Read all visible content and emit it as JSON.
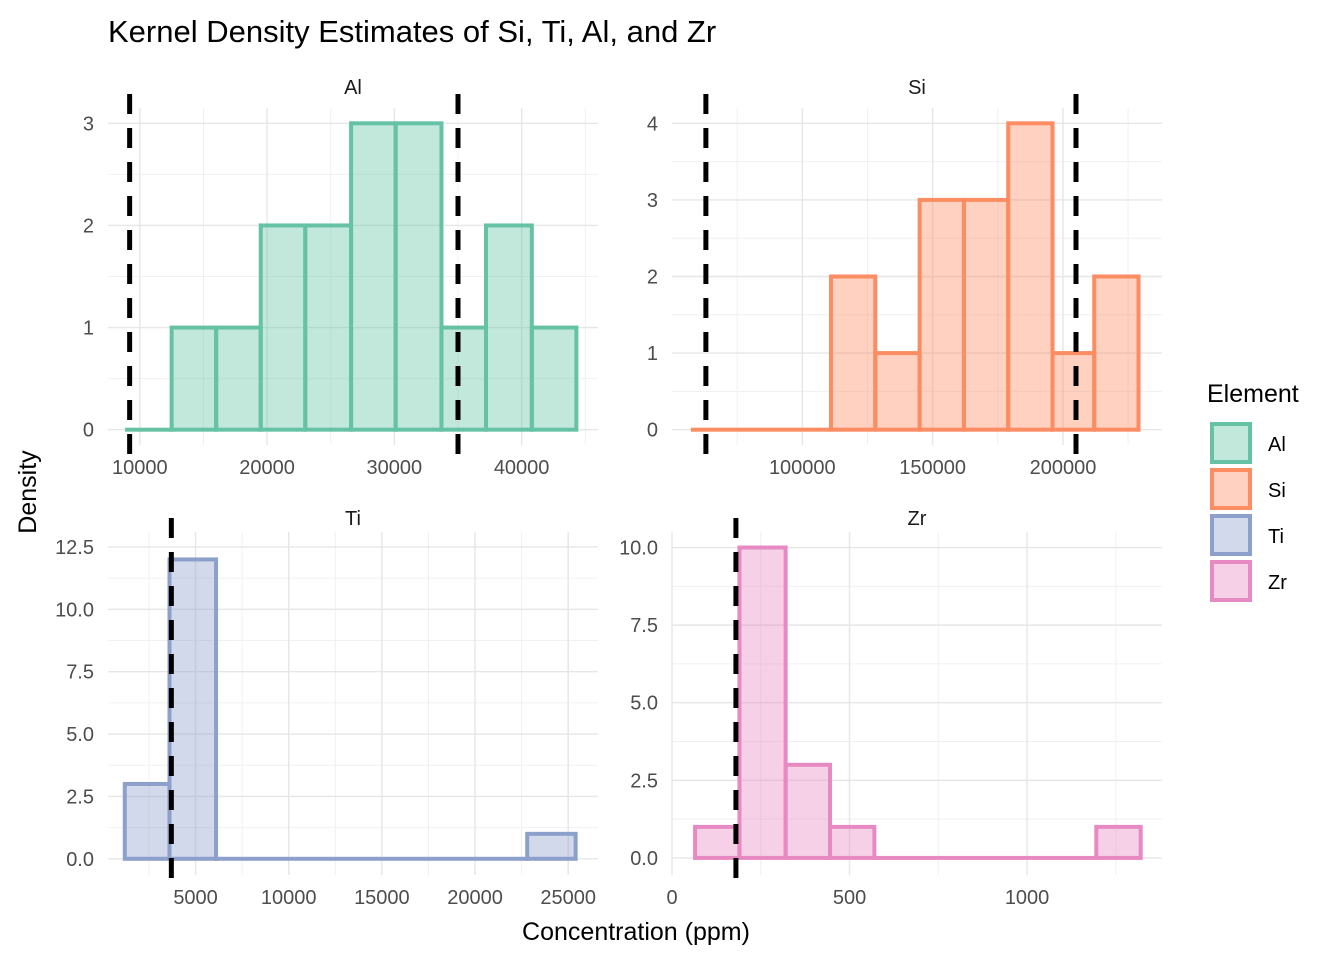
{
  "title": "Kernel Density Estimates of Si, Ti, Al, and Zr",
  "xlabel": "Concentration (ppm)",
  "ylabel": "Density",
  "legend": {
    "title": "Element",
    "position": "right",
    "items": [
      {
        "label": "Al",
        "color": "#66C2A5"
      },
      {
        "label": "Si",
        "color": "#FC8D62"
      },
      {
        "label": "Ti",
        "color": "#8DA0CB"
      },
      {
        "label": "Zr",
        "color": "#E78AC3"
      }
    ]
  },
  "chart_data": {
    "type": "bar",
    "subtype": "histogram-facets",
    "grid": true,
    "facets": [
      {
        "name": "Al",
        "color": "#66C2A5",
        "xlim": [
          7500,
          46000
        ],
        "ylim": [
          -0.15,
          3.15
        ],
        "xticks": [
          10000,
          20000,
          30000,
          40000
        ],
        "xtick_labels": [
          "10000",
          "20000",
          "30000",
          "40000"
        ],
        "yticks": [
          0,
          1,
          2,
          3
        ],
        "ytick_labels": [
          "0",
          "1",
          "2",
          "3"
        ],
        "bins": [
          {
            "x0": 9000,
            "x1": 12500,
            "count": 0
          },
          {
            "x0": 12500,
            "x1": 16000,
            "count": 1
          },
          {
            "x0": 16000,
            "x1": 19500,
            "count": 1
          },
          {
            "x0": 19500,
            "x1": 23000,
            "count": 2
          },
          {
            "x0": 23000,
            "x1": 26600,
            "count": 2
          },
          {
            "x0": 26600,
            "x1": 30100,
            "count": 3
          },
          {
            "x0": 30100,
            "x1": 33700,
            "count": 3
          },
          {
            "x0": 33700,
            "x1": 37200,
            "count": 1
          },
          {
            "x0": 37200,
            "x1": 40800,
            "count": 2
          },
          {
            "x0": 40800,
            "x1": 44300,
            "count": 1
          }
        ],
        "vlines": [
          9200,
          35000
        ]
      },
      {
        "name": "Si",
        "color": "#FC8D62",
        "xlim": [
          50000,
          238000
        ],
        "ylim": [
          -0.2,
          4.2
        ],
        "xticks": [
          100000,
          150000,
          200000
        ],
        "xtick_labels": [
          "100000",
          "150000",
          "200000"
        ],
        "yticks": [
          0,
          1,
          2,
          3,
          4
        ],
        "ytick_labels": [
          "0",
          "1",
          "2",
          "3",
          "4"
        ],
        "bins": [
          {
            "x0": 58000,
            "x1": 111000,
            "count": 0
          },
          {
            "x0": 111000,
            "x1": 128000,
            "count": 2
          },
          {
            "x0": 128000,
            "x1": 145000,
            "count": 1
          },
          {
            "x0": 145000,
            "x1": 162000,
            "count": 3
          },
          {
            "x0": 162000,
            "x1": 179000,
            "count": 3
          },
          {
            "x0": 179000,
            "x1": 196000,
            "count": 4
          },
          {
            "x0": 196000,
            "x1": 212000,
            "count": 1
          },
          {
            "x0": 212000,
            "x1": 229000,
            "count": 2
          }
        ],
        "vlines": [
          63000,
          205000
        ]
      },
      {
        "name": "Ti",
        "color": "#8DA0CB",
        "xlim": [
          300,
          26600
        ],
        "ylim": [
          -0.65,
          13.1
        ],
        "xticks": [
          5000,
          10000,
          15000,
          20000,
          25000
        ],
        "xtick_labels": [
          "5000",
          "10000",
          "15000",
          "20000",
          "25000"
        ],
        "yticks": [
          0,
          2.5,
          5,
          7.5,
          10,
          12.5
        ],
        "ytick_labels": [
          "0.0",
          "2.5",
          "5.0",
          "7.5",
          "10.0",
          "12.5"
        ],
        "bins": [
          {
            "x0": 1200,
            "x1": 3600,
            "count": 3
          },
          {
            "x0": 3600,
            "x1": 6100,
            "count": 12
          },
          {
            "x0": 6100,
            "x1": 22800,
            "count": 0
          },
          {
            "x0": 22800,
            "x1": 25400,
            "count": 1
          }
        ],
        "vlines": [
          3700
        ]
      },
      {
        "name": "Zr",
        "color": "#E78AC3",
        "xlim": [
          0,
          1380
        ],
        "ylim": [
          -0.55,
          10.5
        ],
        "xticks": [
          0,
          500,
          1000
        ],
        "xtick_labels": [
          "0",
          "500",
          "1000"
        ],
        "yticks": [
          0,
          2.5,
          5,
          7.5,
          10
        ],
        "ytick_labels": [
          "0.0",
          "2.5",
          "5.0",
          "7.5",
          "10.0"
        ],
        "bins": [
          {
            "x0": 65,
            "x1": 190,
            "count": 1
          },
          {
            "x0": 190,
            "x1": 320,
            "count": 10
          },
          {
            "x0": 320,
            "x1": 445,
            "count": 3
          },
          {
            "x0": 445,
            "x1": 570,
            "count": 1
          },
          {
            "x0": 570,
            "x1": 1195,
            "count": 0
          },
          {
            "x0": 1195,
            "x1": 1320,
            "count": 1
          }
        ],
        "vlines": [
          180
        ]
      }
    ]
  }
}
